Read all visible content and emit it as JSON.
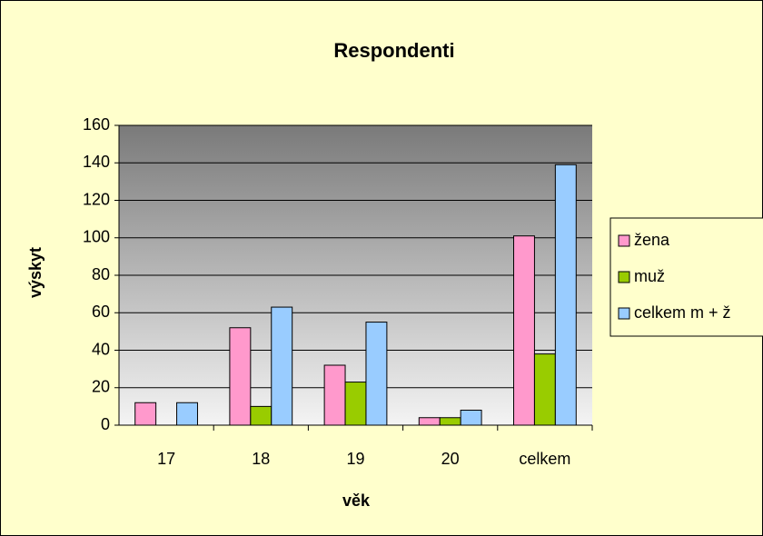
{
  "chart_data": {
    "type": "bar",
    "title": "Respondenti",
    "x_label": "věk",
    "y_label": "výskyt",
    "categories": [
      "17",
      "18",
      "19",
      "20",
      "celkem"
    ],
    "series": [
      {
        "name": "žena",
        "color": "#ff99cc",
        "values": [
          12,
          52,
          32,
          4,
          101
        ]
      },
      {
        "name": "muž",
        "color": "#99cc00",
        "values": [
          0,
          10,
          23,
          4,
          38
        ]
      },
      {
        "name": "celkem m + ž",
        "color": "#99ccff",
        "values": [
          12,
          63,
          55,
          8,
          139
        ]
      }
    ],
    "ylim": [
      0,
      160
    ],
    "yticks": [
      0,
      20,
      40,
      60,
      80,
      100,
      120,
      140,
      160
    ],
    "grid": true,
    "legend": "right"
  }
}
